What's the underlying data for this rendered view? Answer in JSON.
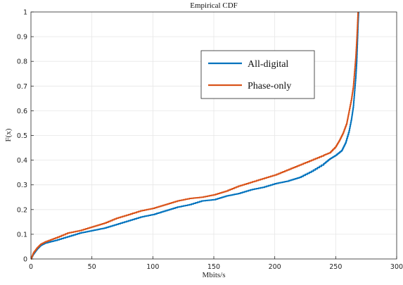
{
  "chart_data": {
    "type": "line",
    "title": "Empirical CDF",
    "xlabel": "Mbits/s",
    "ylabel": "F(x)",
    "xlim": [
      0,
      300
    ],
    "ylim": [
      0,
      1
    ],
    "x_ticks": [
      0,
      50,
      100,
      150,
      200,
      250,
      300
    ],
    "y_ticks": [
      0,
      0.1,
      0.2,
      0.3,
      0.4,
      0.5,
      0.6,
      0.7,
      0.8,
      0.9,
      1
    ],
    "x_tick_labels": [
      "0",
      "50",
      "100",
      "150",
      "200",
      "250",
      "300"
    ],
    "y_tick_labels": [
      "0",
      "0.1",
      "0.2",
      "0.3",
      "0.4",
      "0.5",
      "0.6",
      "0.7",
      "0.8",
      "0.9",
      "1"
    ],
    "grid": true,
    "legend_position": "upper-right-inside",
    "series": [
      {
        "name": "All-digital",
        "color": "#0072BD",
        "x": [
          0,
          2,
          5,
          8,
          12,
          20,
          30,
          40,
          50,
          60,
          70,
          80,
          90,
          100,
          110,
          120,
          130,
          140,
          150,
          160,
          170,
          180,
          190,
          200,
          210,
          220,
          230,
          240,
          245,
          250,
          255,
          258,
          261,
          263,
          264.5,
          265.5,
          266.5,
          267.2,
          267.8,
          268.3,
          268.8
        ],
        "y": [
          0,
          0.02,
          0.04,
          0.055,
          0.065,
          0.075,
          0.09,
          0.105,
          0.115,
          0.125,
          0.14,
          0.155,
          0.17,
          0.18,
          0.195,
          0.21,
          0.22,
          0.235,
          0.24,
          0.255,
          0.265,
          0.28,
          0.29,
          0.305,
          0.315,
          0.33,
          0.355,
          0.385,
          0.405,
          0.42,
          0.44,
          0.47,
          0.52,
          0.57,
          0.62,
          0.68,
          0.74,
          0.8,
          0.88,
          0.95,
          1.0
        ]
      },
      {
        "name": "Phase-only",
        "color": "#D95319",
        "x": [
          0,
          2,
          5,
          8,
          12,
          20,
          30,
          40,
          50,
          60,
          70,
          80,
          90,
          100,
          110,
          120,
          130,
          140,
          150,
          160,
          170,
          180,
          190,
          200,
          210,
          220,
          230,
          240,
          245,
          250,
          253,
          256,
          259,
          261,
          263,
          264.5,
          265.5,
          266.5,
          267.2,
          267.8,
          268.3
        ],
        "y": [
          0,
          0.025,
          0.045,
          0.06,
          0.07,
          0.085,
          0.105,
          0.115,
          0.13,
          0.145,
          0.165,
          0.18,
          0.195,
          0.205,
          0.22,
          0.235,
          0.245,
          0.25,
          0.26,
          0.275,
          0.295,
          0.31,
          0.325,
          0.34,
          0.36,
          0.38,
          0.4,
          0.42,
          0.43,
          0.455,
          0.48,
          0.51,
          0.55,
          0.6,
          0.65,
          0.7,
          0.76,
          0.82,
          0.88,
          0.94,
          1.0
        ]
      }
    ]
  }
}
